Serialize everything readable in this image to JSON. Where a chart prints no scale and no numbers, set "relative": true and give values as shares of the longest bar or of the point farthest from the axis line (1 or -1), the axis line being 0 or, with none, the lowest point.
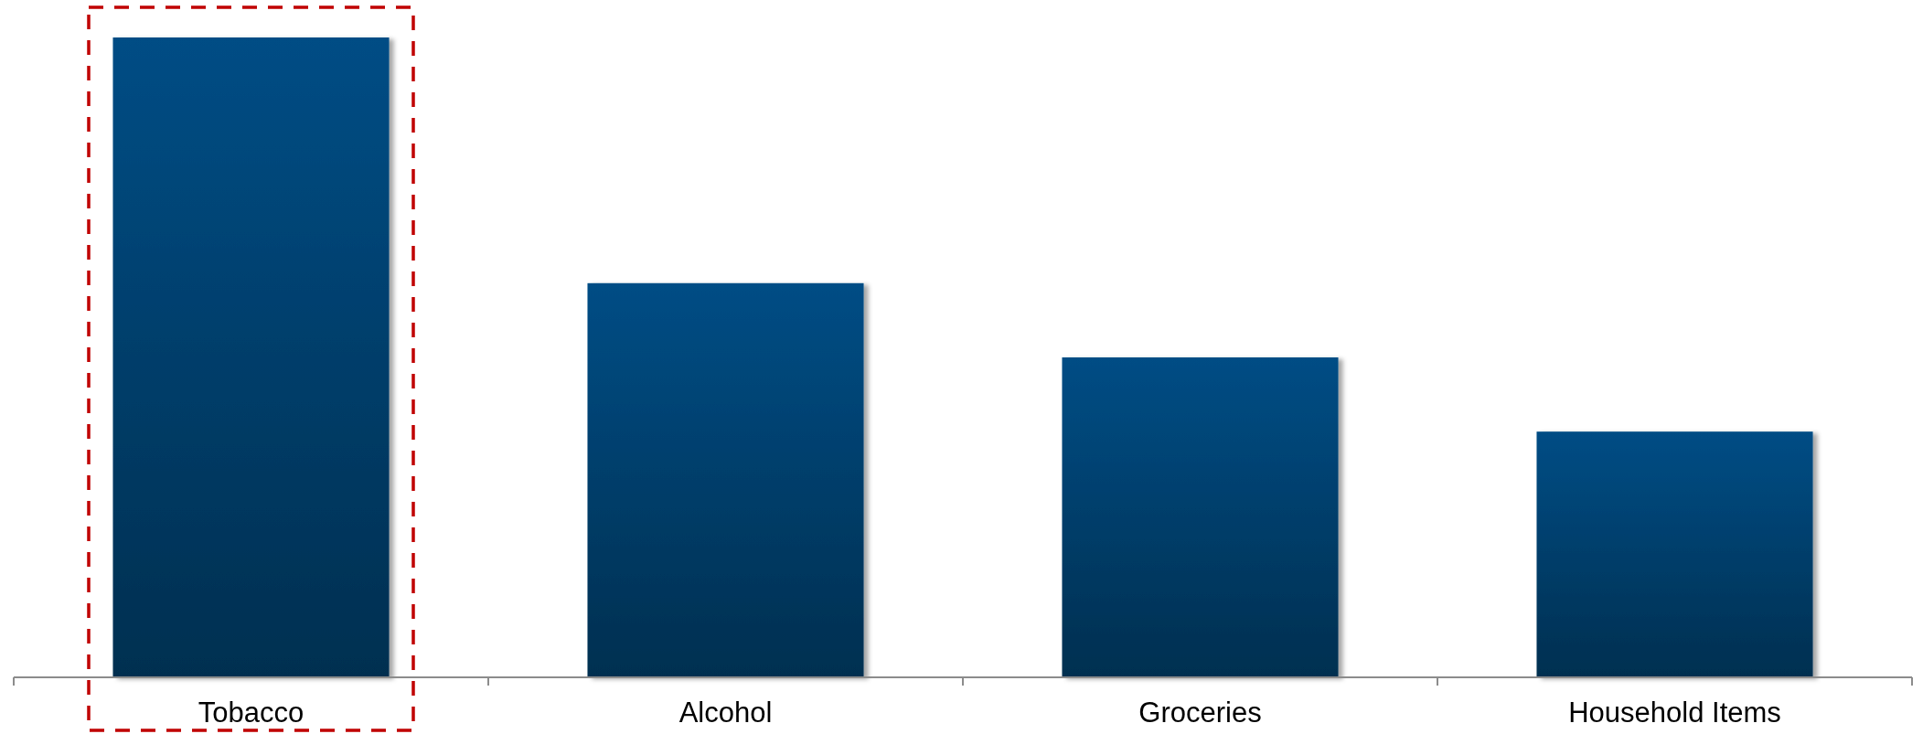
{
  "chart_data": {
    "type": "bar",
    "categories": [
      "Tobacco",
      "Alcohol",
      "Groceries",
      "Household Items"
    ],
    "values": [
      1,
      0.616,
      0.5,
      0.384
    ],
    "relative": true,
    "color": "#003e6b"
  }
}
